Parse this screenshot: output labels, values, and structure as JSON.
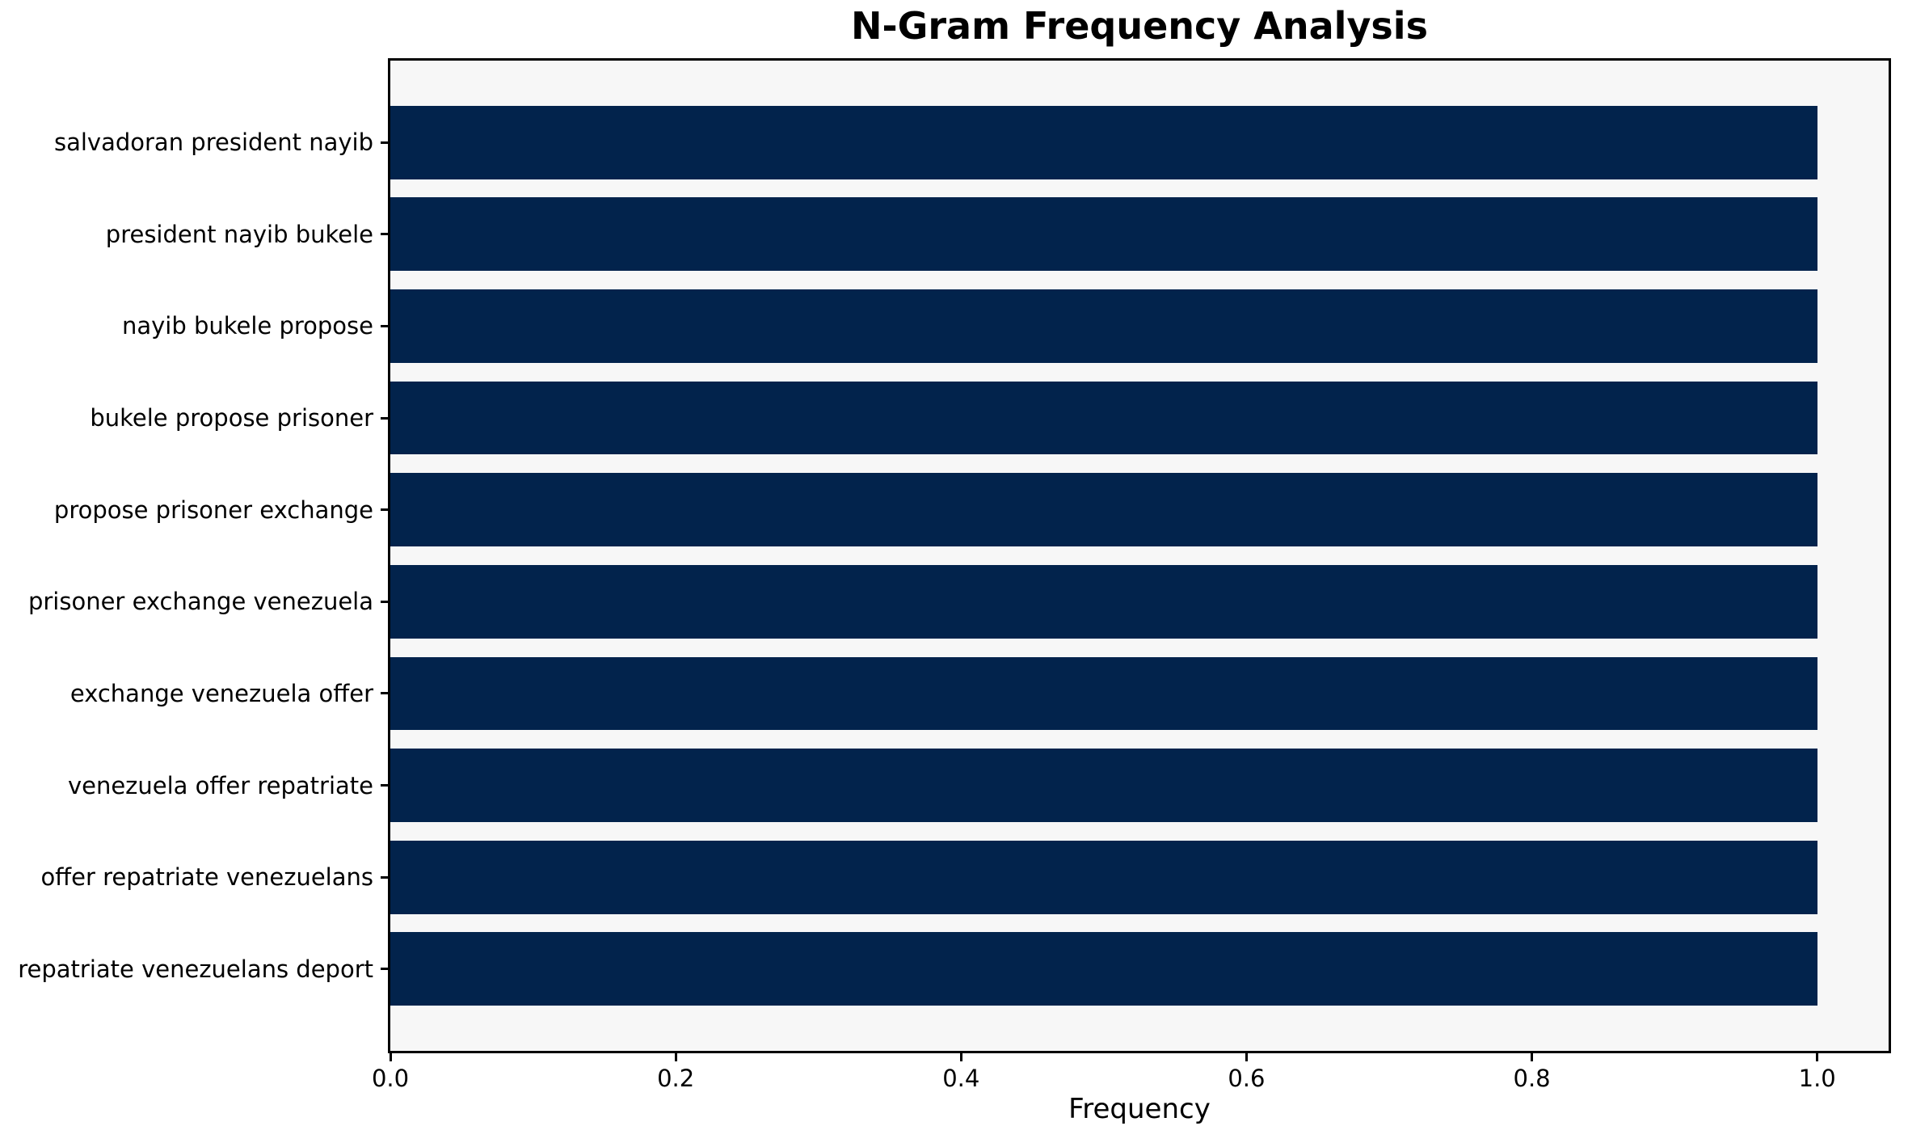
{
  "chart_data": {
    "type": "bar",
    "orientation": "horizontal",
    "title": "N-Gram Frequency Analysis",
    "xlabel": "Frequency",
    "ylabel": "",
    "categories": [
      "salvadoran president nayib",
      "president nayib bukele",
      "nayib bukele propose",
      "bukele propose prisoner",
      "propose prisoner exchange",
      "prisoner exchange venezuela",
      "exchange venezuela offer",
      "venezuela offer repatriate",
      "offer repatriate venezuelans",
      "repatriate venezuelans deport"
    ],
    "values": [
      1.0,
      1.0,
      1.0,
      1.0,
      1.0,
      1.0,
      1.0,
      1.0,
      1.0,
      1.0
    ],
    "xticks": [
      0.0,
      0.2,
      0.4,
      0.6,
      0.8,
      1.0
    ],
    "xtick_labels": [
      "0.0",
      "0.2",
      "0.4",
      "0.6",
      "0.8",
      "1.0"
    ],
    "xlim": [
      0,
      1.05
    ],
    "bar_rel_height": 0.8,
    "grid": false,
    "legend": null,
    "colors": {
      "bar": "#02234c",
      "plot_background": "#f7f7f7",
      "figure_background": "#ffffff",
      "spine": "#000000",
      "text": "#000000"
    }
  }
}
